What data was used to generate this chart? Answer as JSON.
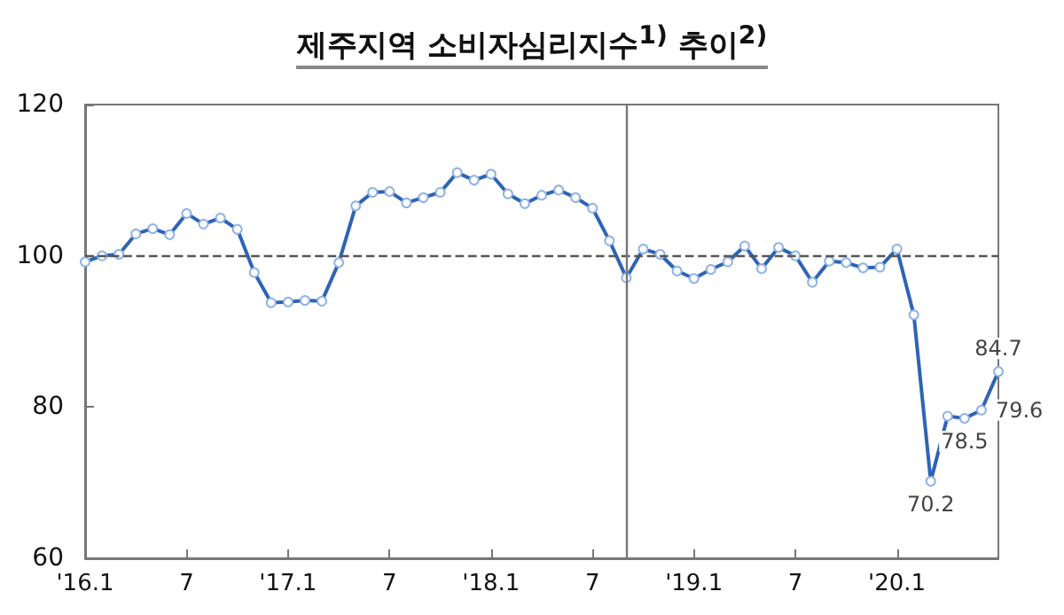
{
  "chart_data": {
    "type": "line",
    "title": "제주지역 소비자심리지수$^{1)}$ 추이$^{2)}$",
    "x": [
      "2016-01",
      "2016-02",
      "2016-03",
      "2016-04",
      "2016-05",
      "2016-06",
      "2016-07",
      "2016-08",
      "2016-09",
      "2016-10",
      "2016-11",
      "2016-12",
      "2017-01",
      "2017-02",
      "2017-03",
      "2017-04",
      "2017-05",
      "2017-06",
      "2017-07",
      "2017-08",
      "2017-09",
      "2017-10",
      "2017-11",
      "2017-12",
      "2018-01",
      "2018-02",
      "2018-03",
      "2018-04",
      "2018-05",
      "2018-06",
      "2018-07",
      "2018-08",
      "2018-09",
      "2018-10",
      "2018-11",
      "2018-12",
      "2019-01",
      "2019-02",
      "2019-03",
      "2019-04",
      "2019-05",
      "2019-06",
      "2019-07",
      "2019-08",
      "2019-09",
      "2019-10",
      "2019-11",
      "2019-12",
      "2020-01",
      "2020-02",
      "2020-03",
      "2020-04",
      "2020-05",
      "2020-06",
      "2020-07"
    ],
    "series": [
      {
        "color": "#2e64b4",
        "values": [
          99.2,
          100.0,
          100.2,
          102.9,
          103.6,
          102.8,
          105.6,
          104.2,
          105.0,
          103.5,
          97.8,
          93.8,
          93.9,
          94.1,
          94.0,
          99.1,
          106.6,
          108.4,
          108.5,
          107.0,
          107.7,
          108.4,
          111.0,
          110.0,
          110.8,
          108.2,
          106.9,
          108.0,
          108.7,
          107.7,
          106.3,
          102.0,
          97.1,
          100.9,
          100.2,
          98.0,
          97.0,
          98.2,
          99.2,
          101.3,
          98.3,
          101.1,
          100.0,
          96.5,
          99.3,
          99.1,
          98.4,
          98.5,
          100.9,
          92.2,
          70.2,
          78.8,
          78.5,
          79.6,
          84.7
        ],
        "value_labels": [
          null,
          null,
          null,
          null,
          null,
          null,
          null,
          null,
          null,
          null,
          null,
          null,
          null,
          null,
          null,
          null,
          null,
          null,
          null,
          null,
          null,
          null,
          null,
          null,
          null,
          null,
          null,
          null,
          null,
          null,
          null,
          null,
          null,
          null,
          null,
          null,
          null,
          null,
          null,
          null,
          null,
          null,
          null,
          null,
          null,
          null,
          null,
          null,
          null,
          null,
          "70.2",
          null,
          "78.5",
          "79.6",
          "84.7"
        ]
      }
    ],
    "xlim": [
      "2016-01",
      "2020-07"
    ],
    "xticks": [
      {
        "value": "2016-01",
        "label": "'16.1"
      },
      {
        "value": "2016-07",
        "label": "7"
      },
      {
        "value": "2017-01",
        "label": "'17.1"
      },
      {
        "value": "2017-07",
        "label": "7"
      },
      {
        "value": "2018-01",
        "label": "'18.1"
      },
      {
        "value": "2018-07",
        "label": "7"
      },
      {
        "value": "2019-01",
        "label": "'19.1"
      },
      {
        "value": "2019-07",
        "label": "7"
      },
      {
        "value": "2020-01",
        "label": "'20.1"
      }
    ],
    "ylim": [
      60,
      120
    ],
    "yticks": [
      60,
      80,
      100,
      120
    ],
    "ref_lines": [
      {
        "axis": "y",
        "value": 100,
        "color": "#555555",
        "line_style": "dashed"
      },
      {
        "axis": "x",
        "value": "2018-09",
        "color": "#777777",
        "line_style": "solid"
      }
    ],
    "marker": "circle",
    "line_style": "solid",
    "grid": false
  }
}
